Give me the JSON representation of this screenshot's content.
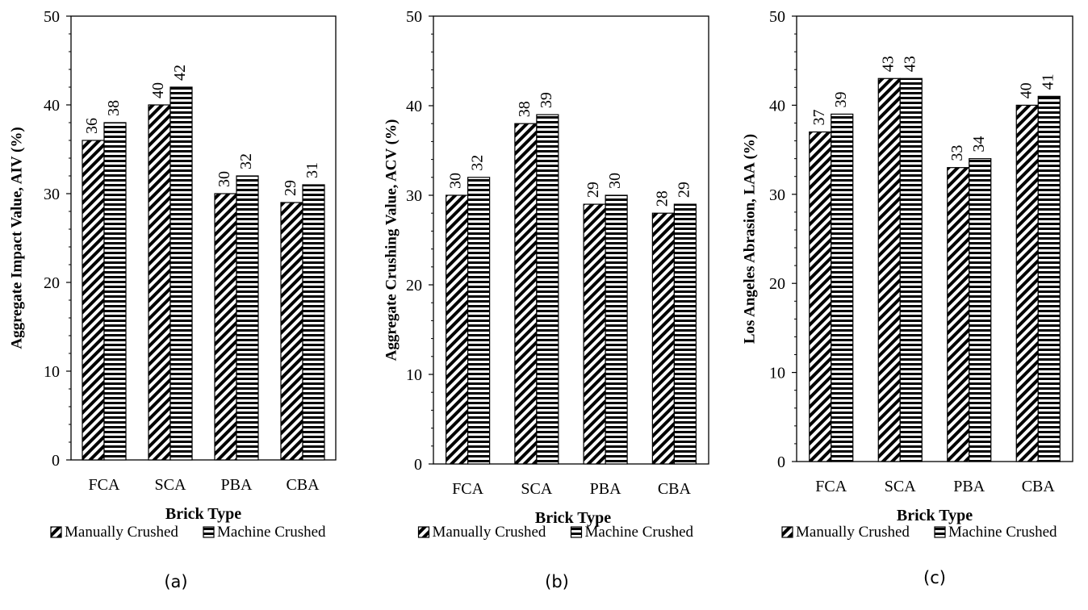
{
  "chart_data": [
    {
      "type": "bar",
      "panel_label": "(a)",
      "categories": [
        "FCA",
        "SCA",
        "PBA",
        "CBA"
      ],
      "series": [
        {
          "name": "Manually Crushed",
          "values": [
            36,
            40,
            30,
            29
          ]
        },
        {
          "name": "Machine Crushed",
          "values": [
            38,
            42,
            32,
            31
          ]
        }
      ],
      "xlabel": "Brick Type",
      "ylabel": "Aggregate Impact Value, AIV (%)",
      "ylim": [
        0,
        50
      ],
      "yticks": [
        0,
        10,
        20,
        30,
        40,
        50
      ],
      "grid": false,
      "legend_position": "bottom"
    },
    {
      "type": "bar",
      "panel_label": "(b)",
      "categories": [
        "FCA",
        "SCA",
        "PBA",
        "CBA"
      ],
      "series": [
        {
          "name": "Manually Crushed",
          "values": [
            30,
            38,
            29,
            28
          ]
        },
        {
          "name": "Machine Crushed",
          "values": [
            32,
            39,
            30,
            29
          ]
        }
      ],
      "xlabel": "Brick Type",
      "ylabel": "Aggregate Crushing Value, ACV (%)",
      "ylim": [
        0,
        50
      ],
      "yticks": [
        0,
        10,
        20,
        30,
        40,
        50
      ],
      "grid": false,
      "legend_position": "bottom"
    },
    {
      "type": "bar",
      "panel_label": "(c)",
      "categories": [
        "FCA",
        "SCA",
        "PBA",
        "CBA"
      ],
      "series": [
        {
          "name": "Manually Crushed",
          "values": [
            37,
            43,
            33,
            40
          ]
        },
        {
          "name": "Machine Crushed",
          "values": [
            39,
            43,
            34,
            41
          ]
        }
      ],
      "xlabel": "Brick Type",
      "ylabel": "Los Angeles Abrasion, LAA (%)",
      "ylim": [
        0,
        50
      ],
      "yticks": [
        0,
        10,
        20,
        30,
        40,
        50
      ],
      "grid": false,
      "legend_position": "bottom"
    }
  ]
}
